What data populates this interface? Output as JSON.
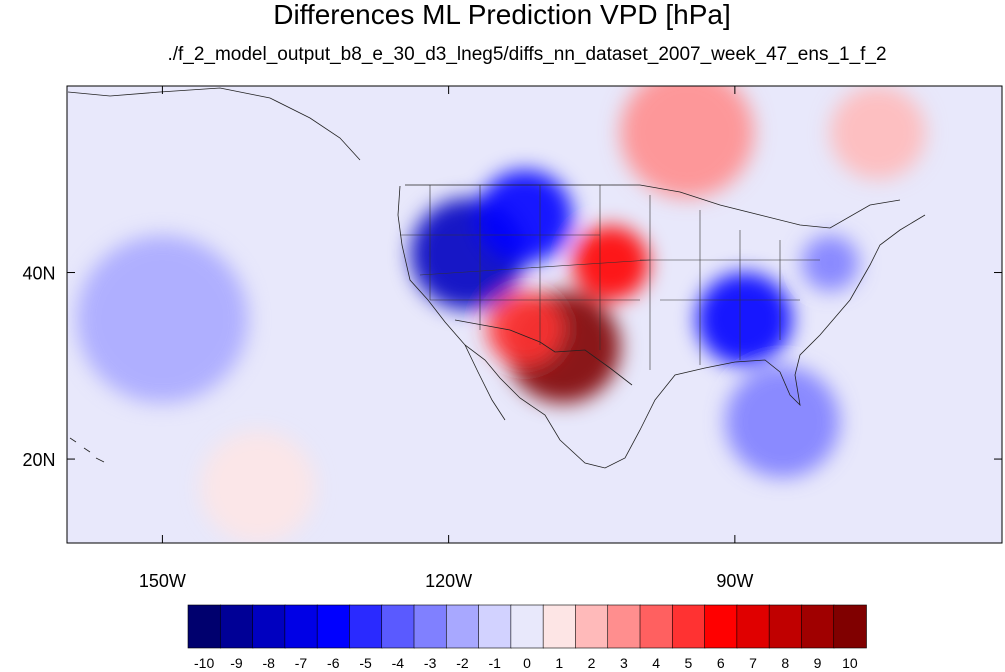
{
  "chart_data": {
    "type": "heatmap",
    "title": "Differences ML Prediction VPD [hPa]",
    "subtitle": "./f_2_model_output_b8_e_30_d3_lneg5/diffs_nn_dataset_2007_week_47_ens_1_f_2",
    "xlabel": "",
    "ylabel": "",
    "xlim": [
      -160,
      -62
    ],
    "ylim": [
      11,
      60
    ],
    "x_ticks": [
      {
        "value": -150,
        "label": "150W"
      },
      {
        "value": -120,
        "label": "120W"
      },
      {
        "value": -90,
        "label": "90W"
      }
    ],
    "y_ticks": [
      {
        "value": 40,
        "label": "40N"
      },
      {
        "value": 20,
        "label": "20N"
      }
    ],
    "colorbar": {
      "levels": [
        -10,
        -9,
        -8,
        -7,
        -6,
        -5,
        -4,
        -3,
        -2,
        -1,
        0,
        1,
        2,
        3,
        4,
        5,
        6,
        7,
        8,
        9,
        10
      ],
      "labels": [
        "-10",
        "-9",
        "-8",
        "-7",
        "-6",
        "-5",
        "-4",
        "-3",
        "-2",
        "-1",
        "0",
        "1",
        "2",
        "3",
        "4",
        "5",
        "6",
        "7",
        "8",
        "9",
        "10"
      ],
      "colors": [
        "#00006e",
        "#000096",
        "#0000c0",
        "#0000e6",
        "#0000ff",
        "#2a2aff",
        "#5a5aff",
        "#8080ff",
        "#a8a8ff",
        "#d2d2ff",
        "#e8e8fb",
        "#fde5e5",
        "#ffbaba",
        "#ff8e8e",
        "#ff6060",
        "#ff3232",
        "#ff0000",
        "#e00000",
        "#c00000",
        "#a00000",
        "#800000"
      ]
    },
    "field_regions": [
      {
        "lon": -118,
        "lat": 42,
        "r": 6,
        "value": -8
      },
      {
        "lon": -112,
        "lat": 46,
        "r": 5,
        "value": -6
      },
      {
        "lon": -103,
        "lat": 41,
        "r": 4,
        "value": 6
      },
      {
        "lon": -108,
        "lat": 32,
        "r": 6,
        "value": 10
      },
      {
        "lon": -112,
        "lat": 34,
        "r": 4,
        "value": 5
      },
      {
        "lon": -89,
        "lat": 35,
        "r": 5,
        "value": -6
      },
      {
        "lon": -80,
        "lat": 41,
        "r": 3,
        "value": -3
      },
      {
        "lon": -95,
        "lat": 55,
        "r": 7,
        "value": 3
      },
      {
        "lon": -75,
        "lat": 55,
        "r": 5,
        "value": 2
      },
      {
        "lon": -150,
        "lat": 35,
        "r": 9,
        "value": -2
      },
      {
        "lon": -85,
        "lat": 24,
        "r": 6,
        "value": -3
      },
      {
        "lon": -140,
        "lat": 17,
        "r": 6,
        "value": 1
      }
    ]
  }
}
